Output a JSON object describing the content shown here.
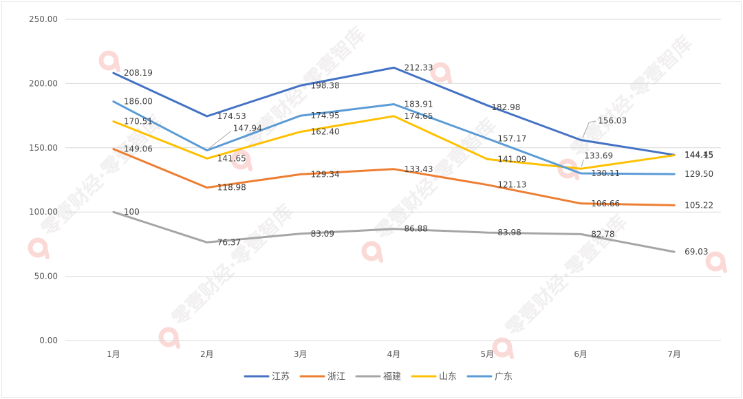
{
  "chart_data": {
    "type": "line",
    "title": "",
    "xlabel": "",
    "ylabel": "",
    "categories": [
      "1月",
      "2月",
      "3月",
      "4月",
      "5月",
      "6月",
      "7月"
    ],
    "ylim": [
      0,
      250
    ],
    "yticks": [
      0,
      50,
      100,
      150,
      200,
      250
    ],
    "ytick_labels": [
      "0.00",
      "50.00",
      "100.00",
      "150.00",
      "200.00",
      "250.00"
    ],
    "grid": true,
    "legend": "bottom",
    "series": [
      {
        "name": "江苏",
        "color": "#4472C4",
        "values": [
          208.19,
          174.53,
          198.38,
          212.33,
          182.98,
          156.03,
          144.45
        ],
        "labels": [
          "208.19",
          "174.53",
          "198.38",
          "212.33",
          "182.98",
          "156.03",
          "144.45"
        ]
      },
      {
        "name": "浙江",
        "color": "#ED7D31",
        "values": [
          149.06,
          118.98,
          129.34,
          133.43,
          121.13,
          106.66,
          105.22
        ],
        "labels": [
          "149.06",
          "118.98",
          "129.34",
          "133.43",
          "121.13",
          "106.66",
          "105.22"
        ]
      },
      {
        "name": "福建",
        "color": "#A5A5A5",
        "values": [
          100,
          76.37,
          83.09,
          86.88,
          83.98,
          82.78,
          69.03
        ],
        "labels": [
          "100",
          "76.37",
          "83.09",
          "86.88",
          "83.98",
          "82.78",
          "69.03"
        ]
      },
      {
        "name": "山东",
        "color": "#FFC000",
        "values": [
          170.51,
          141.65,
          162.4,
          174.65,
          141.09,
          133.69,
          144.15
        ],
        "labels": [
          "170.51",
          "141.65",
          "162.40",
          "174.65",
          "141.09",
          "133.69",
          "144.15"
        ]
      },
      {
        "name": "广东",
        "color": "#5B9BD5",
        "values": [
          186.0,
          147.94,
          174.95,
          183.91,
          157.17,
          130.11,
          129.5
        ],
        "labels": [
          "186.00",
          "147.94",
          "174.95",
          "183.91",
          "157.17",
          "130.11",
          "129.50"
        ]
      }
    ]
  },
  "watermark": {
    "text": "零壹财经·零壹智库",
    "logo_color": "#F07A6E"
  }
}
